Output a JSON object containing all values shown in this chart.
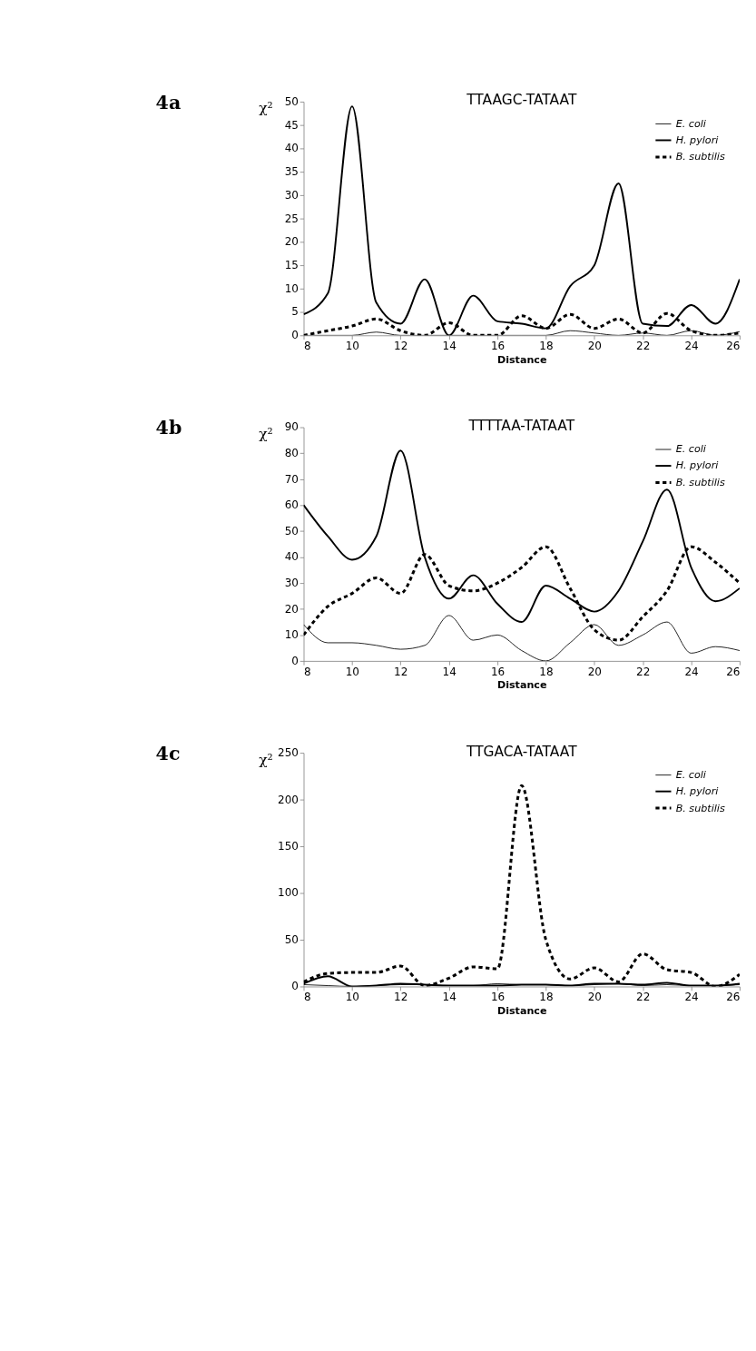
{
  "chart_data": [
    {
      "type": "line",
      "title": "TTAAGC-TATAAT",
      "xlabel": "Distance",
      "ylabel": "χ²",
      "annotations": [
        "4a"
      ],
      "x": [
        8,
        9,
        10,
        11,
        12,
        13,
        14,
        15,
        16,
        17,
        18,
        19,
        20,
        21,
        22,
        23,
        24,
        25,
        26
      ],
      "xlim": [
        8,
        26
      ],
      "xticks": [
        8,
        10,
        12,
        14,
        16,
        18,
        20,
        22,
        24,
        26
      ],
      "ylim": [
        0,
        50
      ],
      "yticks": [
        0,
        5,
        10,
        15,
        20,
        25,
        30,
        35,
        40,
        45,
        50
      ],
      "grid": false,
      "legend": "top right",
      "marker": "none",
      "series": [
        {
          "name": "E. coli",
          "color": "#000000",
          "line_style": "solid",
          "values": [
            0,
            0,
            0,
            0.7,
            0,
            0,
            0,
            0,
            0,
            0,
            0,
            1,
            0.5,
            0,
            0.5,
            0,
            1,
            0,
            0.8
          ]
        },
        {
          "name": "H. pylori",
          "color": "#000000",
          "line_style": "solid",
          "values": [
            4.5,
            9,
            49,
            7,
            2.5,
            12,
            0,
            8.5,
            3,
            2.5,
            1.5,
            10.5,
            15,
            32.5,
            2.5,
            2,
            6.5,
            2.5,
            12
          ]
        },
        {
          "name": "B. subtilis",
          "color": "#000000",
          "line_style": "dashed",
          "values": [
            0,
            1,
            2,
            3.5,
            1,
            0,
            2.7,
            0,
            0,
            4.2,
            1.5,
            4.5,
            1.5,
            3.5,
            0.5,
            4.7,
            1,
            0,
            0.5
          ]
        }
      ]
    },
    {
      "type": "line",
      "title": "TTTTAA-TATAAT",
      "xlabel": "Distance",
      "ylabel": "χ²",
      "annotations": [
        "4b"
      ],
      "x": [
        8,
        9,
        10,
        11,
        12,
        13,
        14,
        15,
        16,
        17,
        18,
        19,
        20,
        21,
        22,
        23,
        24,
        25,
        26
      ],
      "xlim": [
        8,
        26
      ],
      "xticks": [
        8,
        10,
        12,
        14,
        16,
        18,
        20,
        22,
        24,
        26
      ],
      "ylim": [
        0,
        90
      ],
      "yticks": [
        0,
        10,
        20,
        30,
        40,
        50,
        60,
        70,
        80,
        90
      ],
      "grid": false,
      "legend": "top right",
      "marker": "none",
      "series": [
        {
          "name": "E. coli",
          "color": "#000000",
          "line_style": "solid",
          "values": [
            14,
            7,
            7,
            6,
            4.5,
            6,
            17.5,
            8,
            10,
            4,
            0,
            7,
            14,
            6,
            10,
            15,
            3,
            5.5,
            4
          ]
        },
        {
          "name": "H. pylori",
          "color": "#000000",
          "line_style": "solid",
          "values": [
            60,
            48,
            39,
            48,
            81,
            40,
            24,
            33,
            22,
            15,
            29,
            24,
            19,
            27,
            46,
            66,
            36,
            23,
            28
          ]
        },
        {
          "name": "B. subtilis",
          "color": "#000000",
          "line_style": "dashed",
          "values": [
            10,
            21,
            26,
            32,
            26,
            41,
            29,
            27,
            30,
            36,
            44,
            28,
            12,
            8,
            17,
            27,
            44,
            38,
            30
          ]
        }
      ]
    },
    {
      "type": "line",
      "title": "TTGACA-TATAAT",
      "xlabel": "Distance",
      "ylabel": "χ²",
      "annotations": [
        "4c"
      ],
      "x": [
        8,
        9,
        10,
        11,
        12,
        13,
        14,
        15,
        16,
        17,
        18,
        19,
        20,
        21,
        22,
        23,
        24,
        25,
        26
      ],
      "xlim": [
        8,
        26
      ],
      "xticks": [
        8,
        10,
        12,
        14,
        16,
        18,
        20,
        22,
        24,
        26
      ],
      "ylim": [
        0,
        250
      ],
      "yticks": [
        0,
        50,
        100,
        150,
        200,
        250
      ],
      "grid": false,
      "legend": "top right",
      "marker": "none",
      "series": [
        {
          "name": "E. coli",
          "color": "#000000",
          "line_style": "solid",
          "values": [
            2,
            1,
            0,
            1,
            2,
            2,
            1,
            1,
            3,
            2,
            2,
            1,
            2,
            3,
            1,
            2,
            1,
            1,
            2
          ]
        },
        {
          "name": "H. pylori",
          "color": "#000000",
          "line_style": "solid",
          "values": [
            3,
            11,
            0,
            1,
            3,
            2,
            1,
            1,
            1,
            2,
            2,
            1,
            3,
            3,
            2,
            4,
            1,
            1,
            3
          ]
        },
        {
          "name": "B. subtilis",
          "color": "#000000",
          "line_style": "dashed",
          "values": [
            5,
            14,
            15,
            15,
            22,
            1,
            9,
            21,
            19,
            215,
            50,
            8,
            20,
            5,
            35,
            18,
            15,
            0,
            13
          ]
        }
      ]
    }
  ]
}
